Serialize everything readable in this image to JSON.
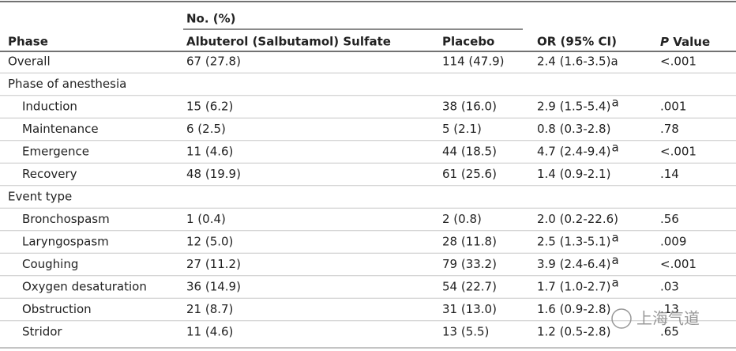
{
  "table": {
    "group_header": "No. (%)",
    "columns": [
      "Phase",
      "Albuterol (Salbutamol) Sulfate",
      "Placebo",
      "OR (95% CI)",
      {
        "italic": "P",
        "text": "Value"
      }
    ],
    "overall": {
      "cells": [
        "Overall",
        "67 (27.8)",
        "114 (47.9)",
        "2.4 (1.6-3.5)a",
        "<.001"
      ]
    },
    "sections": [
      {
        "title": "Phase of anesthesia",
        "rows": [
          {
            "cells": [
              "Induction",
              "15 (6.2)",
              "38 (16.0)",
              "2.9 (1.5-5.4)",
              ".001"
            ],
            "note": "a"
          },
          {
            "cells": [
              "Maintenance",
              "6 (2.5)",
              "5 (2.1)",
              "0.8 (0.3-2.8)",
              ".78"
            ]
          },
          {
            "cells": [
              "Emergence",
              "11 (4.6)",
              "44 (18.5)",
              "4.7 (2.4-9.4)",
              "<.001"
            ],
            "note": "a"
          },
          {
            "cells": [
              "Recovery",
              "48 (19.9)",
              "61 (25.6)",
              "1.4 (0.9-2.1)",
              ".14"
            ]
          }
        ]
      },
      {
        "title": "Event type",
        "rows": [
          {
            "cells": [
              "Bronchospasm",
              "1 (0.4)",
              "2 (0.8)",
              "2.0 (0.2-22.6)",
              ".56"
            ]
          },
          {
            "cells": [
              "Laryngospasm",
              "12 (5.0)",
              "28 (11.8)",
              "2.5 (1.3-5.1)",
              ".009"
            ],
            "note": "a"
          },
          {
            "cells": [
              "Coughing",
              "27 (11.2)",
              "79 (33.2)",
              "3.9 (2.4-6.4)",
              "<.001"
            ],
            "note": "a"
          },
          {
            "cells": [
              "Oxygen desaturation",
              "36 (14.9)",
              "54 (22.7)",
              "1.7 (1.0-2.7)",
              ".03"
            ],
            "note": "a"
          },
          {
            "cells": [
              "Obstruction",
              "21 (8.7)",
              "31 (13.0)",
              "1.6 (0.9-2.8)",
              ".13"
            ]
          },
          {
            "cells": [
              "Stridor",
              "11 (4.6)",
              "13 (5.5)",
              "1.2 (0.5-2.8)",
              ".65"
            ]
          }
        ]
      }
    ],
    "watermark": "上海气道"
  }
}
